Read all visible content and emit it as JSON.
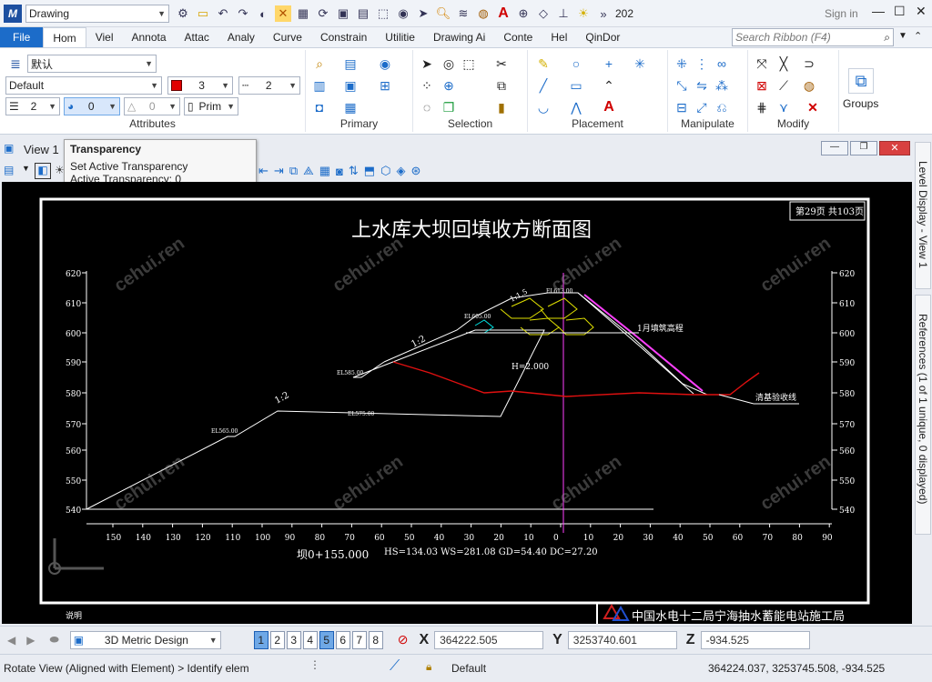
{
  "titlebar": {
    "workflow": "Drawing",
    "search_partial": "202",
    "sign_in": "Sign in"
  },
  "ribbon_tabs": [
    "File",
    "Hom",
    "Viel",
    "Annota",
    "Attac",
    "Analy",
    "Curve",
    "Constrain",
    "Utilitie",
    "Drawing Ai",
    "Conte",
    "Hel",
    "QinDor"
  ],
  "ribbon_search_placeholder": "Search Ribbon (F4)",
  "attributes": {
    "level": "默认",
    "style": "Default",
    "color_num": "3",
    "line_style": "2",
    "weight": "2",
    "transparency": "0",
    "priority": "0",
    "class": "Prim",
    "label": "Attributes"
  },
  "groups": {
    "primary": "Primary",
    "selection": "Selection",
    "placement": "Placement",
    "manipulate": "Manipulate",
    "modify": "Modify",
    "groups": "Groups"
  },
  "view": {
    "title": "View 1"
  },
  "tooltip": {
    "title": "Transparency",
    "line1": "Set Active Transparency",
    "line2": "Active Transparency: 0"
  },
  "side_tabs": {
    "level_display": "Level Display - View 1",
    "references": "References (1 of 1 unique, 0 displayed)"
  },
  "drawing": {
    "title": "上水库大坝回填收方断面图",
    "page": "第29页  共103页",
    "y_ticks": [
      "620",
      "610",
      "600",
      "590",
      "580",
      "570",
      "560",
      "550",
      "540"
    ],
    "x_ticks": [
      "150",
      "140",
      "130",
      "120",
      "110",
      "100",
      "90",
      "80",
      "70",
      "60",
      "50",
      "40",
      "30",
      "20",
      "10",
      "0",
      "10",
      "20",
      "30",
      "40",
      "50",
      "60",
      "70",
      "80",
      "90"
    ],
    "section": "坝0+155.000",
    "params": "HS=134.03    WS=281.08   GD=54.40    DC=27.20",
    "slope1": "1:2",
    "slope2": "1:2",
    "slope3": "1:1.5",
    "elev_left": "EL565.00",
    "elev_mid1": "EL575.00",
    "elev_mid2": "EL585.00",
    "elev_top": "EL605.00",
    "elev_crest": "EL613.00",
    "fill_label": "1月填筑高程",
    "h_label": "H=2.000",
    "base_label": "清基验收线",
    "note": "说明",
    "company": "中国水电十二局宁海抽水蓄能电站施工局"
  },
  "bottom": {
    "design": "3D Metric Design",
    "views": [
      "1",
      "2",
      "3",
      "4",
      "5",
      "6",
      "7",
      "8"
    ],
    "x_label": "X",
    "x": "364222.505",
    "y_label": "Y",
    "y": "3253740.601",
    "z_label": "Z",
    "z": "-934.525"
  },
  "status": {
    "prompt": "Rotate View (Aligned with Element) > Identify elem",
    "level": "Default",
    "coords": "364224.037, 3253745.508, -934.525"
  },
  "colors": {
    "accent": "#1c6cc9",
    "red_line": "#e01010",
    "magenta": "#ff40ff",
    "yellow": "#e0e000",
    "cyan": "#00e0e0"
  }
}
